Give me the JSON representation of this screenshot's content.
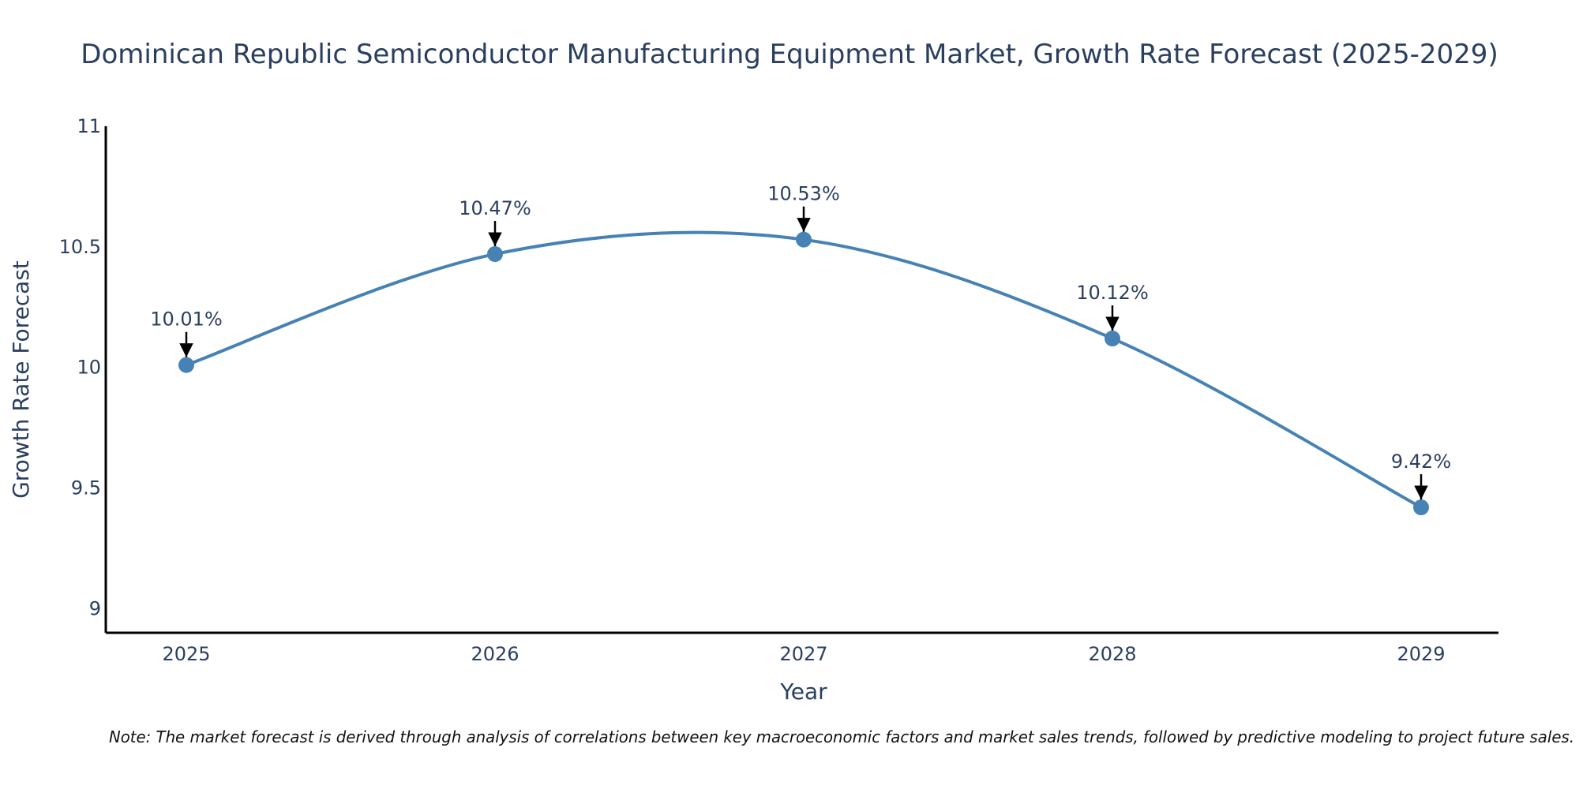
{
  "chart_data": {
    "type": "line",
    "title": "Dominican Republic Semiconductor Manufacturing Equipment Market, Growth Rate Forecast (2025-2029)",
    "xlabel": "Year",
    "ylabel": "Growth Rate Forecast",
    "categories": [
      "2025",
      "2026",
      "2027",
      "2028",
      "2029"
    ],
    "series": [
      {
        "name": "Growth Rate Forecast",
        "values": [
          10.01,
          10.47,
          10.53,
          10.12,
          9.42
        ],
        "labels": [
          "10.01%",
          "10.47%",
          "10.53%",
          "10.12%",
          "9.42%"
        ]
      }
    ],
    "ylim": [
      8.9,
      11
    ],
    "yticks": [
      9,
      9.5,
      10,
      10.5,
      11
    ],
    "ytick_labels": [
      "9",
      "9.5",
      "10",
      "10.5",
      "11"
    ],
    "grid": false,
    "line_shape": "spline",
    "line_color": "#4682b4",
    "marker_color": "#4682b4",
    "arrow_color": "#000000",
    "note": "Note: The market forecast is derived through analysis of correlations between key macroeconomic factors and market sales trends, followed by predictive modeling to project future sales."
  }
}
